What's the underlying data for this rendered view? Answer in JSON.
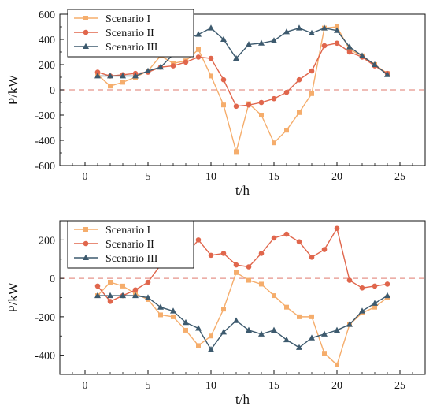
{
  "chart_data": [
    {
      "type": "line",
      "title": "",
      "xlabel": "t/h",
      "ylabel": "P/kW",
      "xlim": [
        -2,
        27
      ],
      "ylim": [
        -600,
        600
      ],
      "xticks": [
        0,
        5,
        10,
        15,
        20,
        25
      ],
      "yticks": [
        -600,
        -400,
        -200,
        0,
        200,
        400,
        600
      ],
      "reference_line_y": 0,
      "legend_position": "top-left",
      "grid": false,
      "x": [
        1,
        2,
        3,
        4,
        5,
        6,
        7,
        8,
        9,
        10,
        11,
        12,
        13,
        14,
        15,
        16,
        17,
        18,
        19,
        20,
        21,
        22,
        23,
        24
      ],
      "series": [
        {
          "name": "Scenario I",
          "marker": "square",
          "color": "#f5ad6c",
          "values": [
            120,
            30,
            60,
            100,
            150,
            270,
            210,
            230,
            320,
            110,
            -120,
            -490,
            -110,
            -200,
            -420,
            -320,
            -180,
            -30,
            490,
            500,
            320,
            270,
            200,
            130
          ]
        },
        {
          "name": "Scenario II",
          "marker": "circle",
          "color": "#e0664c",
          "values": [
            140,
            110,
            120,
            130,
            140,
            180,
            190,
            220,
            260,
            250,
            80,
            -130,
            -120,
            -100,
            -70,
            -20,
            80,
            150,
            350,
            370,
            300,
            260,
            190,
            130
          ]
        },
        {
          "name": "Scenario III",
          "marker": "triangle",
          "color": "#3d5a6e",
          "values": [
            110,
            110,
            110,
            110,
            150,
            180,
            280,
            400,
            440,
            490,
            400,
            250,
            360,
            370,
            390,
            460,
            490,
            450,
            490,
            470,
            340,
            270,
            200,
            120
          ]
        }
      ]
    },
    {
      "type": "line",
      "title": "",
      "xlabel": "t/h",
      "ylabel": "P/kW",
      "xlim": [
        -2,
        27
      ],
      "ylim": [
        -500,
        300
      ],
      "xticks": [
        0,
        5,
        10,
        15,
        20,
        25
      ],
      "yticks": [
        -400,
        -200,
        0,
        200
      ],
      "reference_line_y": 0,
      "legend_position": "top-left",
      "grid": false,
      "x": [
        1,
        2,
        3,
        4,
        5,
        6,
        7,
        8,
        9,
        10,
        11,
        12,
        13,
        14,
        15,
        16,
        17,
        18,
        19,
        20,
        21,
        22,
        23,
        24
      ],
      "series": [
        {
          "name": "Scenario I",
          "marker": "square",
          "color": "#f5ad6c",
          "values": [
            -90,
            -20,
            -40,
            -80,
            -110,
            -190,
            -200,
            -270,
            -350,
            -300,
            -160,
            30,
            -10,
            -30,
            -90,
            -150,
            -200,
            -200,
            -390,
            -450,
            -240,
            -180,
            -150,
            -100
          ]
        },
        {
          "name": "Scenario II",
          "marker": "circle",
          "color": "#e0664c",
          "values": [
            -40,
            -120,
            -90,
            -60,
            -20,
            70,
            70,
            120,
            200,
            120,
            130,
            70,
            60,
            130,
            210,
            230,
            190,
            110,
            150,
            260,
            -10,
            -50,
            -40,
            -30
          ]
        },
        {
          "name": "Scenario III",
          "marker": "triangle",
          "color": "#3d5a6e",
          "values": [
            -90,
            -90,
            -90,
            -90,
            -100,
            -150,
            -170,
            -230,
            -260,
            -370,
            -280,
            -220,
            -270,
            -290,
            -270,
            -320,
            -360,
            -310,
            -290,
            -270,
            -240,
            -170,
            -130,
            -90
          ]
        }
      ]
    }
  ]
}
